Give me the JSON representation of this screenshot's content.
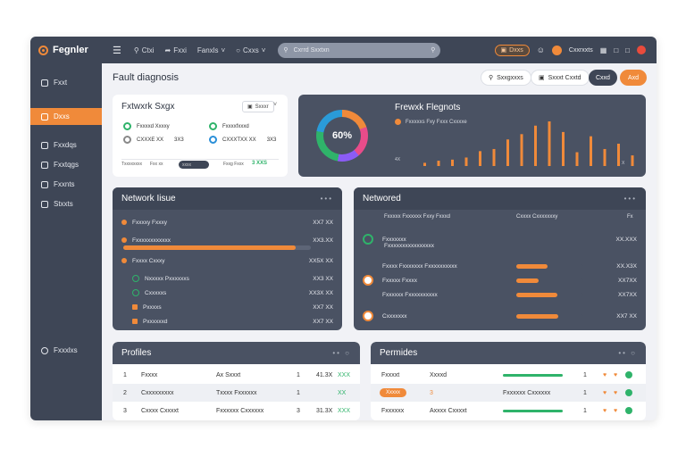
{
  "app": {
    "name": "Fegnler"
  },
  "topbar": {
    "items": [
      {
        "icon": "search-icon",
        "label": "Ctxi"
      },
      {
        "icon": "share-icon",
        "label": "Fxxi"
      },
      {
        "icon": "",
        "label": "Fanxls"
      },
      {
        "icon": "chat-icon",
        "label": "Cxxs"
      }
    ],
    "search_placeholder": "Cxrrd Sxxtxn",
    "status_pill": "Dxxs",
    "user_name": "Cxxrxxts"
  },
  "sidebar": {
    "items": [
      {
        "label": "Fxxt",
        "icon": "file-icon",
        "active": false
      },
      {
        "label": "Dxxs",
        "icon": "folder-icon",
        "active": true
      },
      {
        "label": "Fxxdqs",
        "icon": "doc-icon",
        "active": false
      },
      {
        "label": "Fxxtqgs",
        "icon": "list-icon",
        "active": false
      },
      {
        "label": "Fxxnts",
        "icon": "monitor-icon",
        "active": false
      },
      {
        "label": "Stxxts",
        "icon": "image-icon",
        "active": false
      }
    ],
    "footer_label": "Fxxxlxs"
  },
  "header": {
    "title": "Fault diagnosis",
    "buttons": [
      "Sxxgxxxs",
      "Sxxxt Cxxtd",
      "Cxxd",
      "Axd"
    ]
  },
  "network_stage": {
    "title": "Fxtwxrk Sxgx",
    "dropdown": "Sxxxr",
    "items": [
      {
        "name": "Fxxxxd Xxxxy",
        "value": ""
      },
      {
        "name": "Fxxxxfxxxd",
        "value": ""
      },
      {
        "name": "CXXXE  XX",
        "value": "3X3"
      },
      {
        "name": "CXXXTXX XX",
        "value": "3X3"
      }
    ],
    "footer": {
      "left": "Txxxxxxxx",
      "mid": "Fxx  xx",
      "toggle": "xxxx",
      "right_label": "Fxxg  Fxxx",
      "right_value": "3  XXS"
    }
  },
  "network_flagnots": {
    "title": "Frewxk Flegnots",
    "legend": "Fxxxxxs Fxy  Fxxx Cxxxxe",
    "percent": "60%",
    "bar_values": [
      3,
      5,
      6,
      8,
      14,
      16,
      25,
      30,
      38,
      42,
      32,
      13,
      28,
      16,
      21,
      10
    ],
    "axis_left": "4X",
    "axis_right": "X"
  },
  "network_issues": {
    "title": "Network Iisue",
    "rows": [
      {
        "label": "Fxxxxy Fxxxy",
        "value": "XX7 XX",
        "type": "dot"
      },
      {
        "label": "Fxxxxxxxxxxxx",
        "value": "XX3.XX",
        "type": "bar",
        "fill": 0.92
      },
      {
        "label": "Fxxxx Cxxxy",
        "value": "XX5X XX",
        "type": "dot"
      },
      {
        "label": "Nxxxxx Pxxxxxxs",
        "value": "XX3 XX",
        "type": "green",
        "indent": true
      },
      {
        "label": "Cxxxxxs",
        "value": "XX3X XX",
        "type": "green",
        "indent": true
      },
      {
        "label": "Pxxxxs",
        "value": "XX7 XX",
        "type": "sq",
        "indent": true
      },
      {
        "label": "Pxxxxxxd",
        "value": "XX7 XX",
        "type": "sq",
        "indent": true
      }
    ]
  },
  "networked": {
    "title": "Networed",
    "header_left": "Fxxxxx Fxxxxxx Fxxy Fxxxd",
    "header_mid": "Cxxxx Cxxxxxxxy",
    "header_right": "Fx",
    "rows": [
      {
        "label": "Fxxxxxxx",
        "label2": "Fxxxxxxxxxxxxxxxx",
        "value": "XX.XXX",
        "type": "green",
        "fill": 0
      },
      {
        "label": "Fxxxx Fxxxxxxx Fxxxxxxxxxx",
        "value": "XX.X3X",
        "type": "none",
        "fill": 0.47
      },
      {
        "label": "Fxxxxx Fxxxx",
        "value": "XX7XX",
        "type": "orange",
        "fill": 0.33
      },
      {
        "label": "Fxxxxxx Fxxxxxxxxxx",
        "value": "XX7XX",
        "type": "none",
        "fill": 0.61
      },
      {
        "label": "Cxxxxxxx",
        "value": "XX7 XX",
        "type": "orange",
        "fill": 0.63
      }
    ]
  },
  "profiles_left": {
    "title": "Profiles",
    "rows": [
      {
        "num": "1",
        "name": "Fxxxx",
        "detail": "Ax Sxxxt",
        "count": "1",
        "amount": "41.3X",
        "status": "XXX"
      },
      {
        "num": "2",
        "name": "Cxxxxxxxxx",
        "detail": "Txxxx Fxxxxxx",
        "count": "1",
        "amount": "",
        "status": "XX"
      },
      {
        "num": "3",
        "name": "Cxxxx Cxxxxt",
        "detail": "Fxxxxxx Cxxxxxx",
        "count": "3",
        "amount": "31.3X",
        "status": "XXX"
      }
    ]
  },
  "profiles_right": {
    "title": "Permides",
    "rows": [
      {
        "name": "Fxxxxt",
        "detail": "Xxxxd",
        "count": "1",
        "bar": 0.7,
        "pill": ""
      },
      {
        "name": "",
        "detail": "3",
        "count": "1",
        "bar": 0,
        "pill": "Xxxxx",
        "mid": "Fxxxxxx Cxxxxxx"
      },
      {
        "name": "Fxxxxxx",
        "detail": "Axxxx Cxxxxt",
        "count": "1",
        "bar": 0.7,
        "pill": ""
      }
    ]
  },
  "colors": {
    "accent": "#f08a3a",
    "dark": "#3e4656",
    "green": "#2fb36a"
  }
}
